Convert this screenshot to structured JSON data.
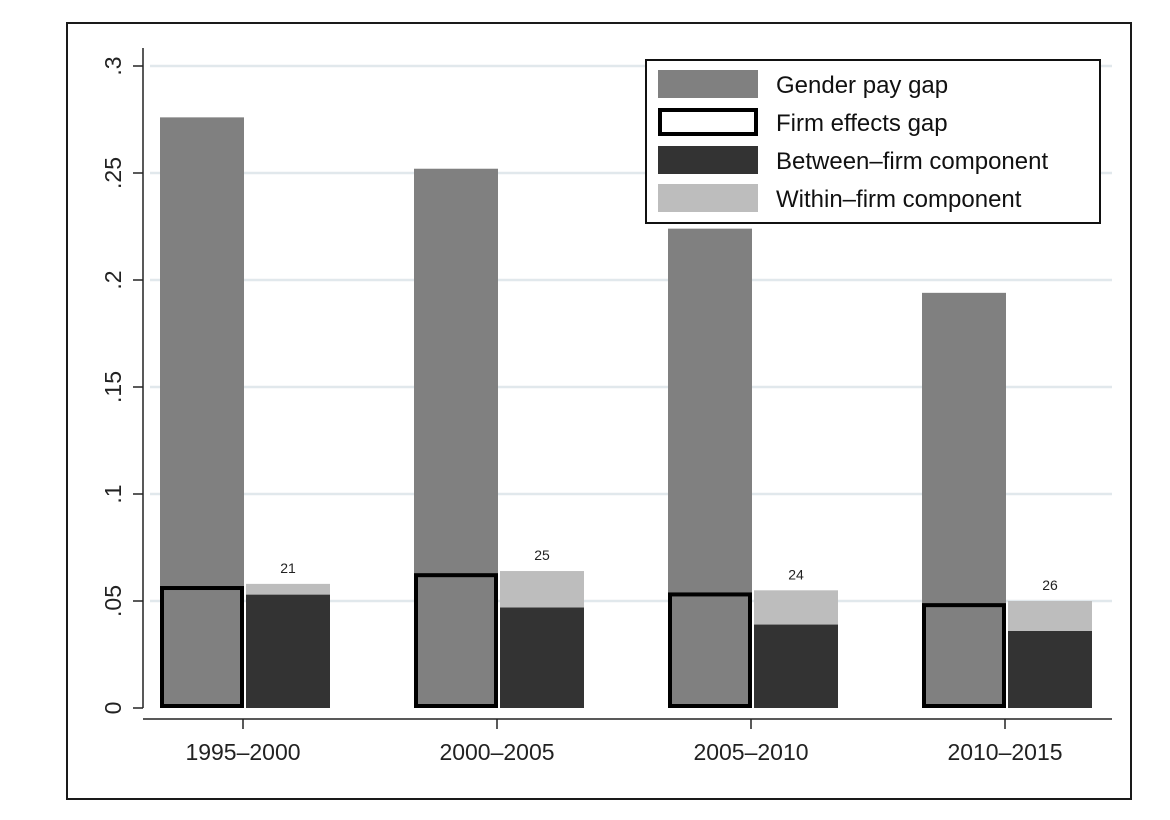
{
  "chart_data": {
    "type": "bar",
    "title": "",
    "xlabel": "",
    "ylabel": "",
    "ylim": [
      0,
      0.3
    ],
    "yticks": [
      0,
      0.05,
      0.1,
      0.15,
      0.2,
      0.25,
      0.3
    ],
    "ytick_labels": [
      "0",
      ".05",
      ".1",
      ".15",
      ".2",
      ".25",
      ".3"
    ],
    "grid": true,
    "legend_position": "top-right",
    "categories": [
      "1995–2000",
      "2000–2005",
      "2005–2010",
      "2010–2015"
    ],
    "series": [
      {
        "name": "Gender pay gap",
        "color": "#808080",
        "values": [
          0.276,
          0.252,
          0.224,
          0.194
        ]
      },
      {
        "name": "Firm effects gap",
        "color": "#808080",
        "outline": "#000000",
        "values": [
          0.057,
          0.063,
          0.054,
          0.049
        ]
      },
      {
        "name": "Between–firm component",
        "color": "#333333",
        "values": [
          0.053,
          0.047,
          0.039,
          0.036
        ]
      },
      {
        "name": "Within–firm component",
        "color": "#bdbdbd",
        "values": [
          0.005,
          0.017,
          0.016,
          0.014
        ]
      }
    ],
    "annotations": [
      "21",
      "25",
      "24",
      "26"
    ]
  }
}
